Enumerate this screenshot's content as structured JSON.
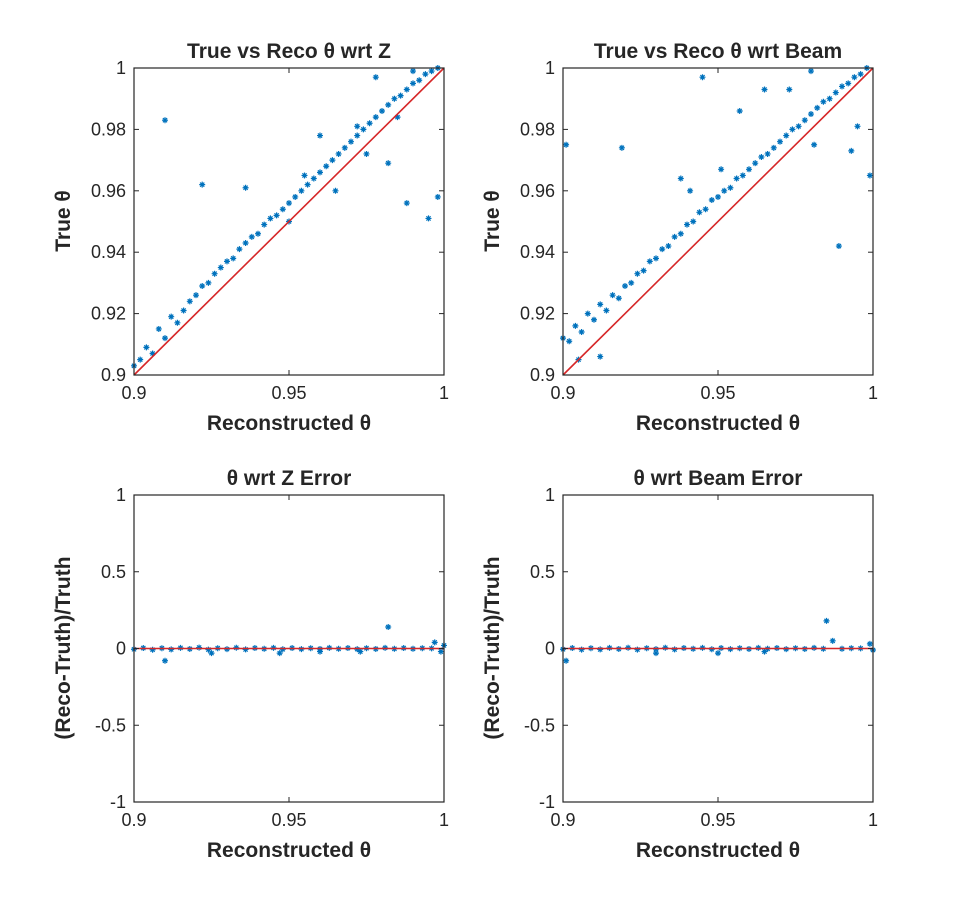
{
  "colors": {
    "points": "#0072BD",
    "fit": "#D62728",
    "axis": "#262626",
    "background": "#ffffff"
  },
  "chart_data": [
    {
      "type": "scatter",
      "title": "True vs Reco θ wrt Z",
      "xlabel": "Reconstructed θ",
      "ylabel": "True θ",
      "xlim": [
        0.9,
        1.0
      ],
      "ylim": [
        0.9,
        1.0
      ],
      "xticks": [
        "0.9",
        "0.95",
        "1"
      ],
      "yticks": [
        "0.9",
        "0.92",
        "0.94",
        "0.96",
        "0.98",
        "1"
      ],
      "grid": false,
      "marker": "asterisk",
      "series": [
        {
          "kind": "points",
          "points": [
            [
              0.9,
              0.903
            ],
            [
              0.902,
              0.905
            ],
            [
              0.904,
              0.909
            ],
            [
              0.906,
              0.907
            ],
            [
              0.908,
              0.915
            ],
            [
              0.91,
              0.912
            ],
            [
              0.912,
              0.919
            ],
            [
              0.914,
              0.917
            ],
            [
              0.916,
              0.921
            ],
            [
              0.918,
              0.924
            ],
            [
              0.92,
              0.926
            ],
            [
              0.922,
              0.929
            ],
            [
              0.924,
              0.93
            ],
            [
              0.926,
              0.933
            ],
            [
              0.928,
              0.935
            ],
            [
              0.93,
              0.937
            ],
            [
              0.932,
              0.938
            ],
            [
              0.934,
              0.941
            ],
            [
              0.936,
              0.943
            ],
            [
              0.938,
              0.945
            ],
            [
              0.94,
              0.946
            ],
            [
              0.942,
              0.949
            ],
            [
              0.944,
              0.951
            ],
            [
              0.946,
              0.952
            ],
            [
              0.948,
              0.954
            ],
            [
              0.95,
              0.956
            ],
            [
              0.952,
              0.958
            ],
            [
              0.954,
              0.96
            ],
            [
              0.956,
              0.962
            ],
            [
              0.958,
              0.964
            ],
            [
              0.96,
              0.966
            ],
            [
              0.962,
              0.968
            ],
            [
              0.964,
              0.97
            ],
            [
              0.966,
              0.972
            ],
            [
              0.968,
              0.974
            ],
            [
              0.97,
              0.976
            ],
            [
              0.972,
              0.978
            ],
            [
              0.974,
              0.98
            ],
            [
              0.976,
              0.982
            ],
            [
              0.978,
              0.984
            ],
            [
              0.98,
              0.986
            ],
            [
              0.982,
              0.988
            ],
            [
              0.984,
              0.99
            ],
            [
              0.986,
              0.991
            ],
            [
              0.988,
              0.993
            ],
            [
              0.99,
              0.995
            ],
            [
              0.992,
              0.996
            ],
            [
              0.994,
              0.998
            ],
            [
              0.996,
              0.999
            ],
            [
              0.998,
              1.0
            ],
            [
              0.91,
              0.983
            ],
            [
              0.922,
              0.962
            ],
            [
              0.936,
              0.961
            ],
            [
              0.978,
              0.997
            ],
            [
              0.982,
              0.969
            ],
            [
              0.998,
              0.958
            ],
            [
              0.995,
              0.951
            ],
            [
              0.988,
              0.956
            ],
            [
              0.955,
              0.965
            ],
            [
              0.96,
              0.978
            ],
            [
              0.95,
              0.95
            ],
            [
              0.965,
              0.96
            ],
            [
              0.972,
              0.981
            ],
            [
              0.975,
              0.972
            ],
            [
              0.985,
              0.984
            ],
            [
              0.99,
              0.999
            ]
          ]
        },
        {
          "kind": "line",
          "points": [
            [
              0.9,
              0.9
            ],
            [
              1.0,
              1.0
            ]
          ]
        }
      ]
    },
    {
      "type": "scatter",
      "title": "True vs Reco θ wrt Beam",
      "xlabel": "Reconstructed θ",
      "ylabel": "True θ",
      "xlim": [
        0.9,
        1.0
      ],
      "ylim": [
        0.9,
        1.0
      ],
      "xticks": [
        "0.9",
        "0.95",
        "1"
      ],
      "yticks": [
        "0.9",
        "0.92",
        "0.94",
        "0.96",
        "0.98",
        "1"
      ],
      "grid": false,
      "marker": "asterisk",
      "series": [
        {
          "kind": "points",
          "points": [
            [
              0.9,
              0.912
            ],
            [
              0.902,
              0.911
            ],
            [
              0.904,
              0.916
            ],
            [
              0.906,
              0.914
            ],
            [
              0.908,
              0.92
            ],
            [
              0.91,
              0.918
            ],
            [
              0.912,
              0.923
            ],
            [
              0.914,
              0.921
            ],
            [
              0.916,
              0.926
            ],
            [
              0.918,
              0.925
            ],
            [
              0.92,
              0.929
            ],
            [
              0.922,
              0.93
            ],
            [
              0.924,
              0.933
            ],
            [
              0.926,
              0.934
            ],
            [
              0.928,
              0.937
            ],
            [
              0.93,
              0.938
            ],
            [
              0.932,
              0.941
            ],
            [
              0.934,
              0.942
            ],
            [
              0.936,
              0.945
            ],
            [
              0.938,
              0.946
            ],
            [
              0.94,
              0.949
            ],
            [
              0.942,
              0.95
            ],
            [
              0.944,
              0.953
            ],
            [
              0.946,
              0.954
            ],
            [
              0.948,
              0.957
            ],
            [
              0.95,
              0.958
            ],
            [
              0.952,
              0.96
            ],
            [
              0.954,
              0.961
            ],
            [
              0.956,
              0.964
            ],
            [
              0.958,
              0.965
            ],
            [
              0.96,
              0.967
            ],
            [
              0.962,
              0.969
            ],
            [
              0.964,
              0.971
            ],
            [
              0.966,
              0.972
            ],
            [
              0.968,
              0.974
            ],
            [
              0.97,
              0.976
            ],
            [
              0.972,
              0.978
            ],
            [
              0.974,
              0.98
            ],
            [
              0.976,
              0.981
            ],
            [
              0.978,
              0.983
            ],
            [
              0.98,
              0.985
            ],
            [
              0.982,
              0.987
            ],
            [
              0.984,
              0.989
            ],
            [
              0.986,
              0.99
            ],
            [
              0.988,
              0.992
            ],
            [
              0.99,
              0.994
            ],
            [
              0.992,
              0.995
            ],
            [
              0.994,
              0.997
            ],
            [
              0.996,
              0.998
            ],
            [
              0.998,
              1.0
            ],
            [
              0.901,
              0.975
            ],
            [
              0.919,
              0.974
            ],
            [
              0.938,
              0.964
            ],
            [
              0.945,
              0.997
            ],
            [
              0.965,
              0.993
            ],
            [
              0.98,
              0.999
            ],
            [
              0.993,
              0.973
            ],
            [
              0.999,
              0.965
            ],
            [
              0.989,
              0.942
            ],
            [
              0.941,
              0.96
            ],
            [
              0.951,
              0.967
            ],
            [
              0.957,
              0.986
            ],
            [
              0.973,
              0.993
            ],
            [
              0.981,
              0.975
            ],
            [
              0.995,
              0.981
            ],
            [
              0.905,
              0.905
            ],
            [
              0.912,
              0.906
            ]
          ]
        },
        {
          "kind": "line",
          "points": [
            [
              0.9,
              0.9
            ],
            [
              1.0,
              1.0
            ]
          ]
        }
      ]
    },
    {
      "type": "scatter",
      "title": "θ wrt Z Error",
      "xlabel": "Reconstructed θ",
      "ylabel": "(Reco-Truth)/Truth",
      "xlim": [
        0.9,
        1.0
      ],
      "ylim": [
        -1,
        1
      ],
      "xticks": [
        "0.9",
        "0.95",
        "1"
      ],
      "yticks": [
        "-1",
        "-0.5",
        "0",
        "0.5",
        "1"
      ],
      "grid": false,
      "marker": "asterisk",
      "series": [
        {
          "kind": "points",
          "points": [
            [
              0.9,
              -0.005
            ],
            [
              0.903,
              0.003
            ],
            [
              0.906,
              -0.008
            ],
            [
              0.909,
              0.002
            ],
            [
              0.91,
              -0.08
            ],
            [
              0.912,
              -0.006
            ],
            [
              0.915,
              0.004
            ],
            [
              0.918,
              -0.003
            ],
            [
              0.921,
              0.006
            ],
            [
              0.924,
              -0.007
            ],
            [
              0.927,
              0.002
            ],
            [
              0.93,
              -0.004
            ],
            [
              0.933,
              0.005
            ],
            [
              0.936,
              -0.006
            ],
            [
              0.939,
              0.003
            ],
            [
              0.942,
              -0.002
            ],
            [
              0.945,
              0.004
            ],
            [
              0.948,
              -0.005
            ],
            [
              0.951,
              0.003
            ],
            [
              0.954,
              -0.004
            ],
            [
              0.957,
              0.002
            ],
            [
              0.96,
              -0.003
            ],
            [
              0.963,
              0.004
            ],
            [
              0.966,
              -0.002
            ],
            [
              0.969,
              0.003
            ],
            [
              0.972,
              -0.004
            ],
            [
              0.975,
              0.002
            ],
            [
              0.978,
              -0.003
            ],
            [
              0.981,
              0.004
            ],
            [
              0.982,
              0.14
            ],
            [
              0.984,
              -0.002
            ],
            [
              0.987,
              0.003
            ],
            [
              0.99,
              -0.002
            ],
            [
              0.993,
              0.002
            ],
            [
              0.996,
              0.001
            ],
            [
              0.997,
              0.04
            ],
            [
              0.999,
              -0.02
            ],
            [
              1.0,
              0.02
            ],
            [
              0.925,
              -0.03
            ],
            [
              0.947,
              -0.03
            ],
            [
              0.96,
              -0.02
            ],
            [
              0.973,
              -0.02
            ]
          ]
        },
        {
          "kind": "line",
          "points": [
            [
              0.9,
              0.0
            ],
            [
              1.0,
              0.0
            ]
          ]
        }
      ]
    },
    {
      "type": "scatter",
      "title": "θ wrt Beam Error",
      "xlabel": "Reconstructed θ",
      "ylabel": "(Reco-Truth)/Truth",
      "xlim": [
        0.9,
        1.0
      ],
      "ylim": [
        -1,
        1
      ],
      "xticks": [
        "0.9",
        "0.95",
        "1"
      ],
      "yticks": [
        "-1",
        "-0.5",
        "0",
        "0.5",
        "1"
      ],
      "grid": false,
      "marker": "asterisk",
      "series": [
        {
          "kind": "points",
          "points": [
            [
              0.9,
              -0.005
            ],
            [
              0.901,
              -0.08
            ],
            [
              0.903,
              0.003
            ],
            [
              0.906,
              -0.007
            ],
            [
              0.909,
              0.002
            ],
            [
              0.912,
              -0.006
            ],
            [
              0.915,
              0.004
            ],
            [
              0.918,
              -0.003
            ],
            [
              0.921,
              0.005
            ],
            [
              0.924,
              -0.007
            ],
            [
              0.927,
              0.002
            ],
            [
              0.93,
              -0.004
            ],
            [
              0.933,
              0.005
            ],
            [
              0.936,
              -0.006
            ],
            [
              0.939,
              0.003
            ],
            [
              0.942,
              -0.002
            ],
            [
              0.945,
              0.004
            ],
            [
              0.948,
              -0.005
            ],
            [
              0.951,
              0.003
            ],
            [
              0.954,
              -0.004
            ],
            [
              0.957,
              0.002
            ],
            [
              0.96,
              -0.003
            ],
            [
              0.963,
              0.004
            ],
            [
              0.966,
              -0.002
            ],
            [
              0.969,
              0.003
            ],
            [
              0.972,
              -0.004
            ],
            [
              0.975,
              0.002
            ],
            [
              0.978,
              -0.003
            ],
            [
              0.981,
              0.004
            ],
            [
              0.984,
              -0.002
            ],
            [
              0.985,
              0.18
            ],
            [
              0.987,
              0.05
            ],
            [
              0.99,
              -0.002
            ],
            [
              0.993,
              0.002
            ],
            [
              0.996,
              0.001
            ],
            [
              0.999,
              0.03
            ],
            [
              1.0,
              -0.01
            ],
            [
              0.93,
              -0.03
            ],
            [
              0.95,
              -0.03
            ],
            [
              0.965,
              -0.02
            ]
          ]
        },
        {
          "kind": "line",
          "points": [
            [
              0.9,
              0.0
            ],
            [
              1.0,
              0.0
            ]
          ]
        }
      ]
    }
  ]
}
